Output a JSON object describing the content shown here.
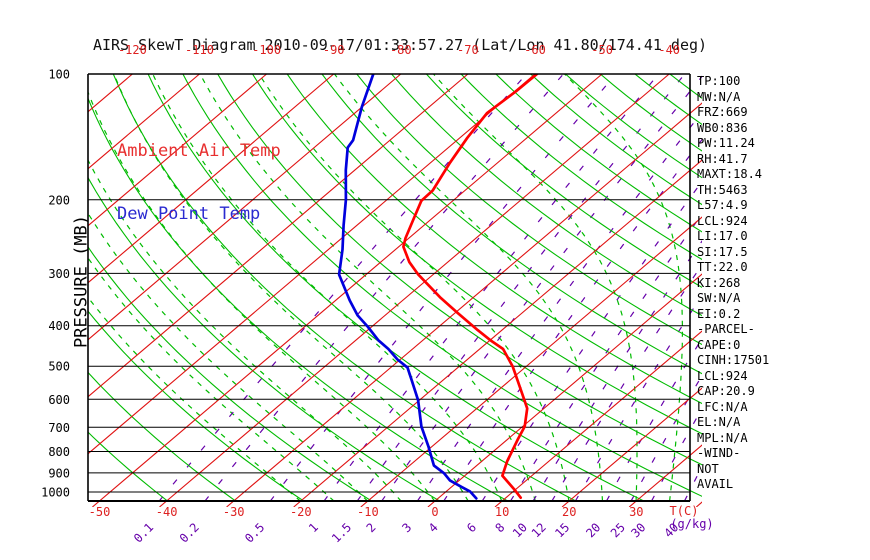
{
  "title": "AIRS SkewT Diagram 2010-09-17/01:33:57.27 (Lat/Lon 41.80/174.41 deg)",
  "legend": {
    "ambient": {
      "label": "Ambient Air Temp",
      "color": "#e82f2f"
    },
    "dewpoint": {
      "label": "Dew Point Temp",
      "color": "#2a2ad0"
    }
  },
  "axes": {
    "pressure_label": "PRESSURE (MB)",
    "pressure_ticks": [
      100,
      200,
      300,
      400,
      500,
      600,
      700,
      800,
      900,
      1000
    ],
    "temp_ticks_top": [
      -120,
      -110,
      -100,
      -90,
      -80,
      -70,
      -60,
      -50,
      -40
    ],
    "temp_ticks_bottom": [
      -50,
      -40,
      -30,
      -20,
      -10,
      0,
      10,
      20,
      30
    ],
    "temp_unit": "T(C)",
    "mixing_unit": "(g/kg)",
    "mixing_ratio_ticks": [
      0.1,
      0.2,
      0.5,
      1,
      1.5,
      2,
      3,
      4,
      6,
      8,
      10,
      12,
      15,
      20,
      25,
      30,
      40
    ]
  },
  "stats": [
    "TP:100",
    "MW:N/A",
    "FRZ:669",
    "WB0:836",
    "PW:11.24",
    "RH:41.7",
    "MAXT:18.4",
    "TH:5463",
    "L57:4.9",
    "LCL:924",
    "LI:17.0",
    "SI:17.5",
    "TT:22.0",
    "KI:268",
    "SW:N/A",
    "EI:0.2",
    "-PARCEL-",
    "CAPE:0",
    "CINH:17501",
    "LCL:924",
    "CAP:20.9",
    "LFC:N/A",
    "EL:N/A",
    "MPL:N/A",
    "-WIND-",
    "NOT",
    "AVAIL"
  ],
  "chart_data": {
    "type": "line",
    "subtype": "skewt",
    "title": "AIRS SkewT Diagram 2010-09-17/01:33:57.27 (Lat/Lon 41.80/174.41 deg)",
    "xlabel": "T(C)",
    "ylabel": "PRESSURE (MB)",
    "x_range_c_at_surface": [
      -52,
      38
    ],
    "pressure_range_mb": [
      100,
      1052
    ],
    "series": [
      {
        "name": "Ambient Air Temp",
        "color": "#ff0000",
        "units": [
          "mb",
          "C"
        ],
        "points": [
          [
            100,
            -59.7
          ],
          [
            110,
            -59.8
          ],
          [
            124,
            -60.3
          ],
          [
            142,
            -58.9
          ],
          [
            163,
            -57.1
          ],
          [
            190,
            -54.8
          ],
          [
            201,
            -54.7
          ],
          [
            223,
            -52.6
          ],
          [
            247,
            -50.5
          ],
          [
            259,
            -49.3
          ],
          [
            282,
            -45.7
          ],
          [
            302,
            -42.2
          ],
          [
            342,
            -35.0
          ],
          [
            373,
            -29.6
          ],
          [
            410,
            -23.6
          ],
          [
            433,
            -20.0
          ],
          [
            455,
            -16.5
          ],
          [
            501,
            -12.0
          ],
          [
            548,
            -8.3
          ],
          [
            601,
            -4.5
          ],
          [
            631,
            -2.5
          ],
          [
            697,
            0.3
          ],
          [
            747,
            1.5
          ],
          [
            845,
            3.8
          ],
          [
            914,
            5.6
          ],
          [
            988,
            9.9
          ],
          [
            1032,
            12.2
          ]
        ]
      },
      {
        "name": "Dew Point Temp",
        "color": "#0000dd",
        "units": [
          "mb",
          "C"
        ],
        "points": [
          [
            100,
            -84.1
          ],
          [
            120,
            -80.0
          ],
          [
            144,
            -75.5
          ],
          [
            150,
            -75.0
          ],
          [
            170,
            -71.3
          ],
          [
            200,
            -66.1
          ],
          [
            230,
            -62.0
          ],
          [
            263,
            -57.9
          ],
          [
            302,
            -54.0
          ],
          [
            348,
            -47.9
          ],
          [
            378,
            -44.1
          ],
          [
            403,
            -40.5
          ],
          [
            433,
            -36.7
          ],
          [
            455,
            -33.6
          ],
          [
            482,
            -30.4
          ],
          [
            504,
            -27.5
          ],
          [
            545,
            -24.3
          ],
          [
            603,
            -20.2
          ],
          [
            697,
            -15.1
          ],
          [
            779,
            -10.5
          ],
          [
            864,
            -6.4
          ],
          [
            902,
            -3.5
          ],
          [
            938,
            -1.4
          ],
          [
            974,
            1.6
          ],
          [
            998,
            3.6
          ],
          [
            1036,
            5.7
          ]
        ]
      }
    ],
    "grid": {
      "isotherms_c": {
        "min": -120,
        "max": 40,
        "step": 10
      },
      "dry_adiabats_theta_k": {
        "min": 230,
        "max": 450,
        "step": 10
      },
      "moist_adiabats_thetaw_c": {
        "min": -20,
        "max": 40,
        "step": 5
      },
      "mixing_ratio_g_kg": [
        0.1,
        0.2,
        0.5,
        1,
        1.5,
        2,
        3,
        4,
        6,
        8,
        10,
        12,
        15,
        20,
        25,
        30,
        40
      ],
      "pressure_lines_mb": [
        100,
        200,
        300,
        400,
        500,
        600,
        700,
        800,
        900,
        1000
      ]
    },
    "colors": {
      "isotherm": "#e01212",
      "dry_adiabat": "#00bb00",
      "moist_adiabat": "#00bb00",
      "mixing_ratio": "#6600aa",
      "pressure_line": "#000000",
      "frame": "#000000",
      "tick_label_temp": "#dd2020",
      "tick_label_mixing": "#6600aa",
      "tick_label_pressure": "#000000"
    },
    "legend_position": "top-left-inside"
  }
}
